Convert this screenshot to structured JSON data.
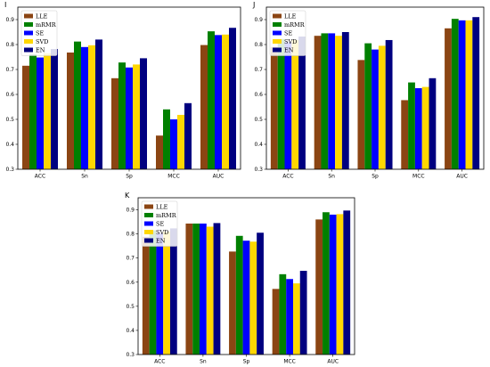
{
  "colors": {
    "LLE": "#8B4513",
    "mRMR": "#008000",
    "SE": "#0000FF",
    "SVD": "#FFD700",
    "EN": "#000080"
  },
  "chart_data": [
    {
      "type": "bar",
      "panel": "I",
      "title": "",
      "xlabel": "",
      "ylabel": "",
      "categories": [
        "ACC",
        "Sn",
        "Sp",
        "MCC",
        "AUC"
      ],
      "ylim": [
        0.3,
        0.95
      ],
      "yticks": [
        0.3,
        0.4,
        0.5,
        0.6,
        0.7,
        0.8,
        0.9
      ],
      "legend_position": "top-left",
      "series": [
        {
          "name": "LLE",
          "values": [
            0.715,
            0.768,
            0.665,
            0.435,
            0.798
          ]
        },
        {
          "name": "mRMR",
          "values": [
            0.76,
            0.812,
            0.728,
            0.54,
            0.853
          ]
        },
        {
          "name": "SE",
          "values": [
            0.748,
            0.79,
            0.708,
            0.5,
            0.838
          ]
        },
        {
          "name": "SVD",
          "values": [
            0.765,
            0.797,
            0.72,
            0.518,
            0.84
          ]
        },
        {
          "name": "EN",
          "values": [
            0.782,
            0.82,
            0.745,
            0.565,
            0.867
          ]
        }
      ]
    },
    {
      "type": "bar",
      "panel": "J",
      "title": "",
      "xlabel": "",
      "ylabel": "",
      "categories": [
        "ACC",
        "Sn",
        "Sp",
        "MCC",
        "AUC"
      ],
      "ylim": [
        0.3,
        0.95
      ],
      "yticks": [
        0.3,
        0.4,
        0.5,
        0.6,
        0.7,
        0.8,
        0.9
      ],
      "legend_position": "top-left",
      "series": [
        {
          "name": "LLE",
          "values": [
            0.79,
            0.835,
            0.738,
            0.577,
            0.865
          ]
        },
        {
          "name": "mRMR",
          "values": [
            0.822,
            0.845,
            0.805,
            0.648,
            0.903
          ]
        },
        {
          "name": "SE",
          "values": [
            0.81,
            0.845,
            0.78,
            0.625,
            0.897
          ]
        },
        {
          "name": "SVD",
          "values": [
            0.818,
            0.835,
            0.795,
            0.63,
            0.897
          ]
        },
        {
          "name": "EN",
          "values": [
            0.832,
            0.85,
            0.818,
            0.665,
            0.91
          ]
        }
      ]
    },
    {
      "type": "bar",
      "panel": "K",
      "title": "",
      "xlabel": "",
      "ylabel": "",
      "categories": [
        "ACC",
        "Sn",
        "Sp",
        "MCC",
        "AUC"
      ],
      "ylim": [
        0.3,
        0.95
      ],
      "yticks": [
        0.3,
        0.4,
        0.5,
        0.6,
        0.7,
        0.8,
        0.9
      ],
      "legend_position": "top-left",
      "series": [
        {
          "name": "LLE",
          "values": [
            0.788,
            0.843,
            0.727,
            0.572,
            0.86
          ]
        },
        {
          "name": "mRMR",
          "values": [
            0.815,
            0.843,
            0.792,
            0.633,
            0.89
          ]
        },
        {
          "name": "SE",
          "values": [
            0.803,
            0.843,
            0.772,
            0.613,
            0.88
          ]
        },
        {
          "name": "SVD",
          "values": [
            0.81,
            0.83,
            0.768,
            0.595,
            0.882
          ]
        },
        {
          "name": "EN",
          "values": [
            0.823,
            0.845,
            0.805,
            0.647,
            0.897
          ]
        }
      ]
    }
  ]
}
